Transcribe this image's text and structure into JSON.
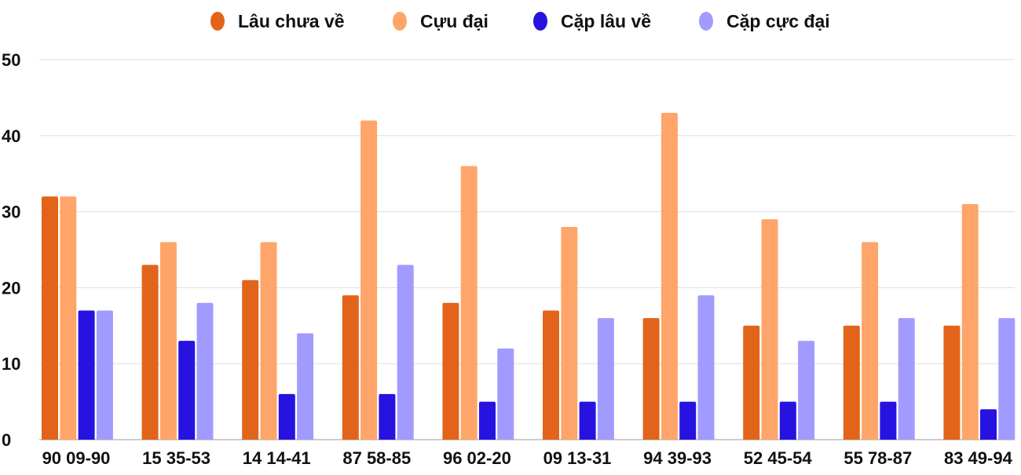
{
  "chart_data": {
    "type": "bar",
    "title": "",
    "xlabel": "",
    "ylabel": "",
    "ylim": [
      0,
      50
    ],
    "yticks": [
      0,
      10,
      20,
      30,
      40,
      50
    ],
    "grid": true,
    "legend_position": "top",
    "categories": [
      "90 09-90",
      "15 35-53",
      "14 14-41",
      "87 58-85",
      "96 02-20",
      "09 13-31",
      "94 39-93",
      "52 45-54",
      "55 78-87",
      "83 49-94"
    ],
    "series": [
      {
        "name": "Lâu chưa về",
        "color": "#e2641a",
        "values": [
          32,
          23,
          21,
          19,
          18,
          17,
          16,
          15,
          15,
          15
        ]
      },
      {
        "name": "Cựu đại",
        "color": "#ffa569",
        "values": [
          32,
          26,
          26,
          42,
          36,
          28,
          43,
          29,
          26,
          31
        ]
      },
      {
        "name": "Cặp lâu về",
        "color": "#2613e0",
        "values": [
          17,
          13,
          6,
          6,
          5,
          5,
          5,
          5,
          5,
          4
        ]
      },
      {
        "name": "Cặp cực đại",
        "color": "#a29bff",
        "values": [
          17,
          18,
          14,
          23,
          12,
          16,
          19,
          13,
          16,
          16
        ]
      }
    ]
  }
}
